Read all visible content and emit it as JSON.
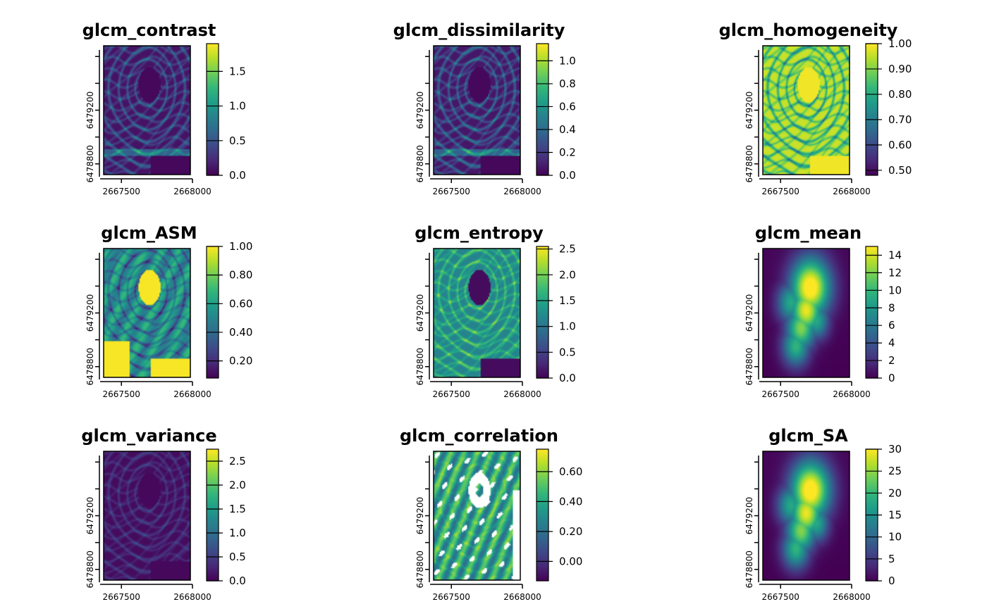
{
  "figure": {
    "palette": [
      "#440154",
      "#482878",
      "#3e4989",
      "#31688e",
      "#26828e",
      "#1f9e89",
      "#35b779",
      "#6ece58",
      "#b5de2b",
      "#fde725"
    ],
    "na_color": "#ffffff"
  },
  "chart_data": [
    {
      "type": "heatmap",
      "title": "glcm_contrast",
      "xlabel": "",
      "ylabel": "",
      "x_ticks": [
        "2667500",
        "2668000"
      ],
      "y_ticks": [
        "6479200",
        "6478800"
      ],
      "legend_ticks": [
        "0.0",
        "0.5",
        "1.0",
        "1.5"
      ],
      "value_range": [
        0,
        1.9
      ],
      "pattern": "contrast"
    },
    {
      "type": "heatmap",
      "title": "glcm_dissimilarity",
      "xlabel": "",
      "ylabel": "",
      "x_ticks": [
        "2667500",
        "2668000"
      ],
      "y_ticks": [
        "6479200",
        "6478800"
      ],
      "legend_ticks": [
        "0.0",
        "0.2",
        "0.4",
        "0.6",
        "0.8",
        "1.0"
      ],
      "value_range": [
        0,
        1.15
      ],
      "pattern": "dissimilarity"
    },
    {
      "type": "heatmap",
      "title": "glcm_homogeneity",
      "xlabel": "",
      "ylabel": "",
      "x_ticks": [
        "2667500",
        "2668000"
      ],
      "y_ticks": [
        "6479200",
        "6478800"
      ],
      "legend_ticks": [
        "0.50",
        "0.60",
        "0.70",
        "0.80",
        "0.90",
        "1.00"
      ],
      "value_range": [
        0.48,
        1.0
      ],
      "pattern": "homogeneity"
    },
    {
      "type": "heatmap",
      "title": "glcm_ASM",
      "xlabel": "",
      "ylabel": "",
      "x_ticks": [
        "2667500",
        "2668000"
      ],
      "y_ticks": [
        "6479200",
        "6478800"
      ],
      "legend_ticks": [
        "0.20",
        "0.40",
        "0.60",
        "0.80",
        "1.00"
      ],
      "value_range": [
        0.08,
        1.0
      ],
      "pattern": "asm"
    },
    {
      "type": "heatmap",
      "title": "glcm_entropy",
      "xlabel": "",
      "ylabel": "",
      "x_ticks": [
        "2667500",
        "2668000"
      ],
      "y_ticks": [
        "6479200",
        "6478800"
      ],
      "legend_ticks": [
        "0.0",
        "0.5",
        "1.0",
        "1.5",
        "2.0",
        "2.5"
      ],
      "value_range": [
        0,
        2.55
      ],
      "pattern": "entropy"
    },
    {
      "type": "heatmap",
      "title": "glcm_mean",
      "xlabel": "",
      "ylabel": "",
      "x_ticks": [
        "2667500",
        "2668000"
      ],
      "y_ticks": [
        "6479200",
        "6478800"
      ],
      "legend_ticks": [
        "0",
        "2",
        "4",
        "6",
        "8",
        "10",
        "12",
        "14"
      ],
      "value_range": [
        0,
        15
      ],
      "pattern": "mean"
    },
    {
      "type": "heatmap",
      "title": "glcm_variance",
      "xlabel": "",
      "ylabel": "",
      "x_ticks": [
        "2667500",
        "2668000"
      ],
      "y_ticks": [
        "6479200",
        "6478800"
      ],
      "legend_ticks": [
        "0.0",
        "0.5",
        "1.0",
        "1.5",
        "2.0",
        "2.5"
      ],
      "value_range": [
        0,
        2.75
      ],
      "pattern": "variance"
    },
    {
      "type": "heatmap",
      "title": "glcm_correlation",
      "xlabel": "",
      "ylabel": "",
      "x_ticks": [
        "2667500",
        "2668000"
      ],
      "y_ticks": [
        "6479200",
        "6478800"
      ],
      "legend_ticks": [
        "0.00",
        "0.20",
        "0.40",
        "0.60"
      ],
      "value_range": [
        -0.13,
        0.75
      ],
      "pattern": "correlation"
    },
    {
      "type": "heatmap",
      "title": "glcm_SA",
      "xlabel": "",
      "ylabel": "",
      "x_ticks": [
        "2667500",
        "2668000"
      ],
      "y_ticks": [
        "6479200",
        "6478800"
      ],
      "legend_ticks": [
        "0",
        "5",
        "10",
        "15",
        "20",
        "25",
        "30"
      ],
      "value_range": [
        0,
        30
      ],
      "pattern": "sa"
    }
  ]
}
